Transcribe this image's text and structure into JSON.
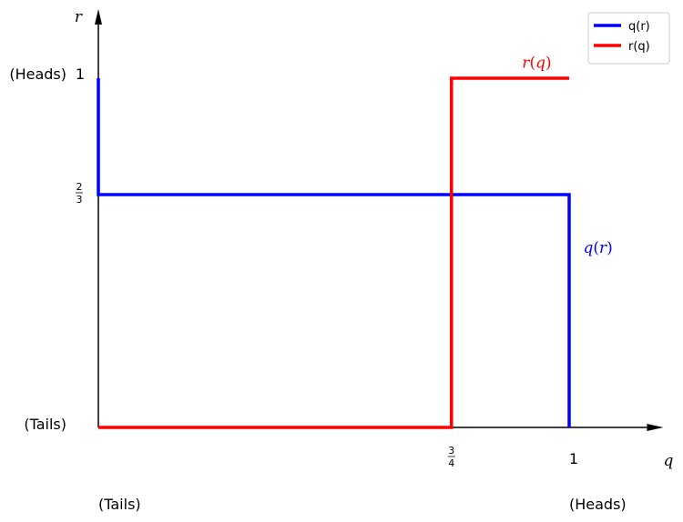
{
  "chart_data": {
    "type": "line",
    "title": "",
    "xlabel": "q",
    "ylabel": "r",
    "xlim": [
      0,
      1.2
    ],
    "ylim": [
      0,
      1
    ],
    "grid": false,
    "legend_position": "top-right",
    "x_ticks": [
      {
        "value": 0.75,
        "num": "3",
        "den": "4"
      },
      {
        "value": 1,
        "label": "1"
      }
    ],
    "y_ticks": [
      {
        "value": 0.6667,
        "num": "2",
        "den": "3"
      },
      {
        "value": 1,
        "label": "1"
      }
    ],
    "x_end_labels": {
      "low": "(Tails)",
      "high": "(Heads)"
    },
    "y_end_labels": {
      "low": "(Tails)",
      "high": "(Heads)"
    },
    "series": [
      {
        "name": "q(r)",
        "color": "#0000ff",
        "points": [
          [
            0,
            1
          ],
          [
            0,
            0.6667
          ],
          [
            1,
            0.6667
          ],
          [
            1,
            0
          ]
        ]
      },
      {
        "name": "r(q)",
        "color": "#ff0000",
        "points": [
          [
            0,
            0
          ],
          [
            0.75,
            0
          ],
          [
            0.75,
            1
          ],
          [
            1,
            1
          ]
        ]
      }
    ],
    "annotations": [
      {
        "base": "q",
        "arg": "r",
        "series": 0,
        "x": 1.03,
        "y": 0.5
      },
      {
        "base": "r",
        "arg": "q",
        "series": 1,
        "x": 0.9,
        "y": 1.03
      }
    ]
  }
}
